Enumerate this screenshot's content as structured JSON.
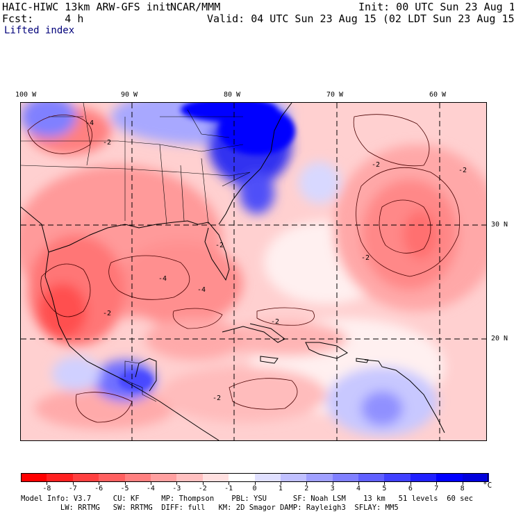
{
  "header": {
    "model": "HAIC-HIWC 13km ARW-GFS init",
    "org": "NCAR/MMM",
    "fcst": "Fcst:     4 h",
    "init": "Init: 00 UTC Sun 23 Aug 15",
    "valid": "Valid: 04 UTC Sun 23 Aug 15 (02 LDT Sun 23 Aug 15)",
    "field": "Lifted index"
  },
  "map": {
    "lon_labels": [
      "100 W",
      "90 W",
      "80 W",
      "70 W",
      "60 W"
    ],
    "lat_labels": [
      "30 N",
      "20 N"
    ],
    "contour_labels": [
      "-4",
      "-2",
      "-4",
      "-2",
      "-2",
      "-4",
      "-2",
      "-2",
      "-2",
      "-2",
      "-2"
    ]
  },
  "colorbar": {
    "unit": "°C",
    "labels": [
      "-8",
      "-7",
      "-6",
      "-5",
      "-4",
      "-3",
      "-2",
      "-1",
      "0",
      "1",
      "2",
      "3",
      "4",
      "5",
      "6",
      "7",
      "8"
    ],
    "colors": [
      "#ff0000",
      "#ff2020",
      "#ff4040",
      "#ff6060",
      "#ff8080",
      "#ffa0a0",
      "#ffc0c0",
      "#ffe0e0",
      "#ffffff",
      "#e0e0ff",
      "#c0c0ff",
      "#a0a0ff",
      "#8080ff",
      "#6060ff",
      "#4040ff",
      "#2020ff",
      "#0000ff",
      "#0000dd"
    ]
  },
  "footer": {
    "line1": "Model Info: V3.7     CU: KF     MP: Thompson    PBL: YSU      SF: Noah LSM    13 km   51 levels  60 sec",
    "line2": "         LW: RRTMG   SW: RRTMG  DIFF: full   KM: 2D Smagor DAMP: Rayleigh3  SFLAY: MM5"
  }
}
